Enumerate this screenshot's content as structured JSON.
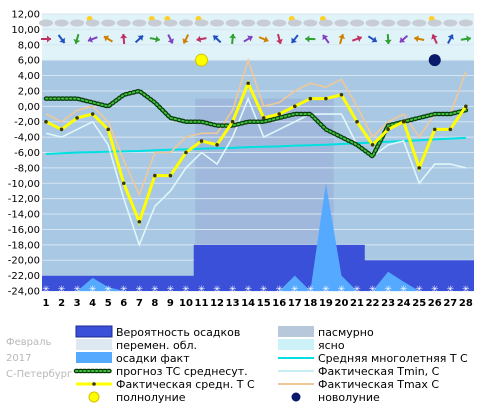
{
  "side_caption": {
    "month": "Февраль",
    "year": "2017",
    "city": "С-Петербург"
  },
  "chart_data": {
    "type": "line",
    "ylim": [
      -24,
      12
    ],
    "yticks": [
      "12,00",
      "10,00",
      "8,00",
      "6,00",
      "4,00",
      "2,00",
      "0,00",
      "-2,00",
      "-4,00",
      "-6,00",
      "-8,00",
      "-10,00",
      "-12,00",
      "-14,00",
      "-16,00",
      "-18,00",
      "-20,00",
      "-22,00",
      "-24,00"
    ],
    "days": [
      1,
      2,
      3,
      4,
      5,
      6,
      7,
      8,
      9,
      10,
      11,
      12,
      13,
      14,
      15,
      16,
      17,
      18,
      19,
      20,
      21,
      22,
      23,
      24,
      25,
      26,
      27,
      28
    ],
    "series": [
      {
        "name": "Фактическая средн. Т С",
        "color": "#ffff00",
        "values": [
          -2,
          -3,
          -1.5,
          -1,
          -3,
          -10,
          -15,
          -9,
          -9,
          -6,
          -4.5,
          -5,
          -2,
          3,
          -1.5,
          -1,
          0,
          1,
          1,
          1.5,
          -2,
          -5,
          -3,
          -2,
          -8,
          -3,
          -3,
          0
        ]
      },
      {
        "name": "Фактическая Tmin, С",
        "color": "#e0f7fa",
        "values": [
          -3.5,
          -4,
          -3,
          -2,
          -5,
          -12,
          -18,
          -13,
          -11,
          -8,
          -6,
          -7.5,
          -4,
          1,
          -4,
          -3,
          -2,
          -1,
          -1,
          -1,
          -5,
          -6.5,
          -5,
          -4.5,
          -10,
          -7.5,
          -7.5,
          -8
        ]
      },
      {
        "name": "Фактическая Tmax C",
        "color": "#f0c898",
        "values": [
          -1,
          -2,
          -0.5,
          0,
          -2,
          -7,
          -11.5,
          -6,
          -6,
          -4,
          -3.5,
          -3.5,
          -0.5,
          6,
          0,
          0.5,
          2,
          3,
          2.5,
          3.5,
          0,
          -4,
          -2,
          -1,
          -4,
          -1,
          -1,
          4.5
        ]
      },
      {
        "name": "прогноз ТС среднесут.",
        "color": "#1a8a1a",
        "values": [
          1,
          1,
          1,
          0.5,
          0,
          1.5,
          2,
          0.5,
          -1.5,
          -2,
          -2,
          -2.5,
          -2.5,
          -2,
          -2,
          -1.5,
          -1,
          -1,
          -3,
          -4,
          -5,
          -6.5,
          -2.5,
          -2,
          -1.5,
          -1,
          -1,
          -0.5
        ]
      },
      {
        "name": "Средняя многолетняя Т С",
        "color": "#00e0e0",
        "values": [
          -6.2,
          -6.1,
          -6.0,
          -5.95,
          -5.9,
          -5.85,
          -5.8,
          -5.7,
          -5.65,
          -5.6,
          -5.5,
          -5.45,
          -5.4,
          -5.3,
          -5.25,
          -5.2,
          -5.1,
          -5.05,
          -5.0,
          -4.9,
          -4.8,
          -4.7,
          -4.6,
          -4.5,
          -4.4,
          -4.3,
          -4.2,
          -4.1
        ]
      },
      {
        "name": "Вероятность осадков",
        "color": "#3a50d8",
        "values": [
          -22,
          -22,
          -22,
          -22,
          -22,
          -22,
          -22,
          -22,
          -22,
          -22,
          -18,
          -18,
          -18,
          -18,
          -18,
          -18,
          -18,
          -18,
          -18,
          -18,
          -18,
          -20,
          -20,
          -20,
          -20,
          -20,
          -20,
          -20
        ]
      },
      {
        "name": "осадки факт",
        "color": "#55aaff",
        "values": [
          -24,
          -24,
          -24,
          -22.3,
          -23.5,
          -24,
          -24,
          -24,
          -24,
          -24,
          -24,
          -24,
          -24,
          -24,
          -24,
          -24,
          -22,
          -24,
          -10,
          -22,
          -24,
          -24,
          -21.5,
          -22.8,
          -24,
          -24,
          -24,
          -24
        ]
      }
    ],
    "overcast_band": {
      "from_day": 10.6,
      "to_day": 19.5,
      "top": 1
    },
    "moons": [
      {
        "kind": "полнолуние",
        "day": 11,
        "value": 6
      },
      {
        "kind": "новолуние",
        "day": 26,
        "value": 6
      }
    ]
  },
  "legend": {
    "items": [
      {
        "label": "Вероятность осадков",
        "swatch": "dark-bar"
      },
      {
        "label": "пасмурно",
        "swatch": "overcast-bar"
      },
      {
        "label": "перемен. обл.",
        "swatch": "partly-bar"
      },
      {
        "label": "ясно",
        "swatch": "clear-bar"
      },
      {
        "label": "осадки факт",
        "swatch": "precip-bar"
      },
      {
        "label": "Средняя многолетняя Т С",
        "swatch": "cyan-line"
      },
      {
        "label": "прогноз ТС среднесут.",
        "swatch": "green-dots"
      },
      {
        "label": "Фактическая Tmin, С",
        "swatch": "lightcyan-line"
      },
      {
        "label": "Фактическая средн. Т С",
        "swatch": "yellow-line"
      },
      {
        "label": "Фактическая Tmax C",
        "swatch": "tan-line"
      },
      {
        "label": "полнолуние",
        "swatch": "yellow-circle"
      },
      {
        "label": "новолуние",
        "swatch": "navy-circle"
      }
    ]
  },
  "colors": {
    "plot_bg": "#a8c8e4",
    "top_band": "#dff3f8",
    "grid": "#d8e6f2",
    "overcast": "#9fb8dc",
    "precip_prob": "#3a50d8",
    "precip_fact": "#55aaff"
  }
}
